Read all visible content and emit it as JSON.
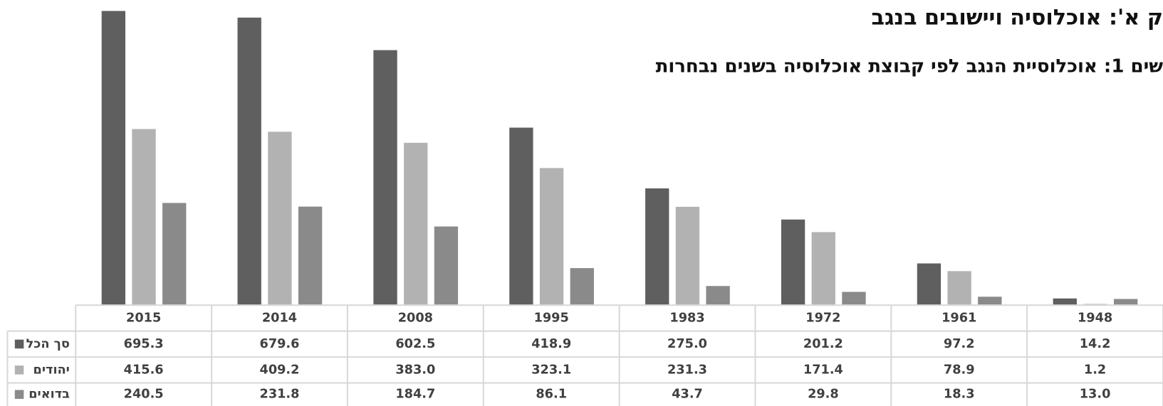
{
  "chart_data": {
    "type": "bar",
    "title": "ק א': אוכלוסיה ויישובים בנגב",
    "subtitle": "שים 1: אוכלוסיית הנגב לפי קבוצת אוכלוסיה בשנים נבחרות",
    "categories": [
      "2015",
      "2014",
      "2008",
      "1995",
      "1983",
      "1972",
      "1961",
      "1948"
    ],
    "series": [
      {
        "name": "סך הכל",
        "color": "#5f5f5f",
        "values": [
          695.3,
          679.6,
          602.5,
          418.9,
          275.0,
          201.2,
          97.2,
          14.2
        ],
        "value_labels": [
          "695.3",
          "679.6",
          "602.5",
          "418.9",
          "275.0",
          "201.2",
          "97.2",
          "14.2"
        ]
      },
      {
        "name": "יהודים",
        "color": "#b2b2b2",
        "values": [
          415.6,
          409.2,
          383.0,
          323.1,
          231.3,
          171.4,
          78.9,
          1.2
        ],
        "value_labels": [
          "415.6",
          "409.2",
          "383.0",
          "323.1",
          "231.3",
          "171.4",
          "78.9",
          "1.2"
        ]
      },
      {
        "name": "בדואים",
        "color": "#8a8a8a",
        "values": [
          240.5,
          231.8,
          184.7,
          86.1,
          43.7,
          29.8,
          18.3,
          13.0
        ],
        "value_labels": [
          "240.5",
          "231.8",
          "184.7",
          "86.1",
          "43.7",
          "29.8",
          "18.3",
          "13.0"
        ]
      }
    ],
    "ylim": [
      0,
      700
    ]
  }
}
